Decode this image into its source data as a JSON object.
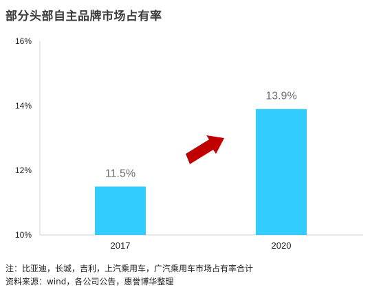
{
  "chart_data": {
    "type": "bar",
    "title": "部分头部自主品牌市场占有率",
    "categories": [
      "2017",
      "2020"
    ],
    "values": [
      11.5,
      13.9
    ],
    "value_labels": [
      "11.5%",
      "13.9%"
    ],
    "ylim": [
      10,
      16
    ],
    "yticks": [
      10,
      12,
      14,
      16
    ],
    "ytick_labels": [
      "10%",
      "12%",
      "14%",
      "16%"
    ],
    "xlabel": "",
    "ylabel": "",
    "grid": false,
    "bar_color": "#33ccff",
    "arrow_color": "#c00000",
    "annotation": "up-arrow"
  },
  "notes": {
    "note": "注：比亚迪，长城，吉利，上汽乘用车，广汽乘用车市场占有率合计",
    "source": "资料来源：wind，各公司公告，惠誉博华整理"
  }
}
